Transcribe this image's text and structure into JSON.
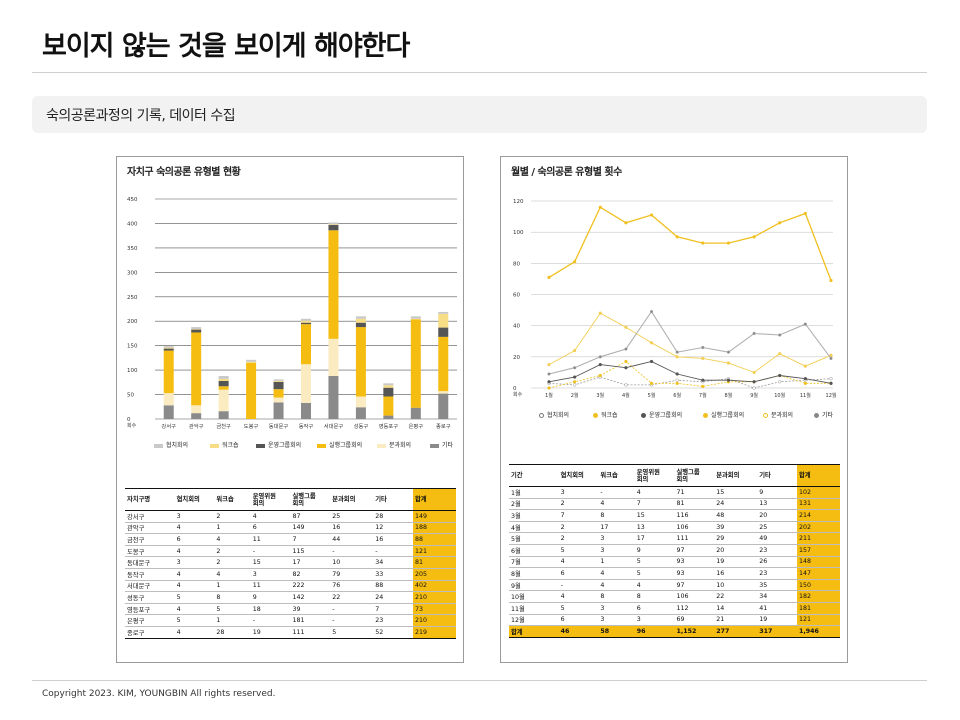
{
  "page": {
    "title": "보이지 않는 것을 보이게 해야한다",
    "section": "숙의공론과정의  기록, 데이터 수집",
    "copyright": "Copyright 2023.  KIM, YOUNGBIN All rights reserved."
  },
  "colors": {
    "accent": "#f5bd12",
    "s1": "#c9c9c9",
    "s2": "#f6dd86",
    "s3": "#555555",
    "s4": "#f5bd12",
    "s5": "#faebc0",
    "s6": "#8a8a8a",
    "l1": "#f0c020",
    "l2": "#b0b0b0",
    "l3": "#555555"
  },
  "left_panel": {
    "title": "자치구 숙의공론 유형별 현황",
    "legend": [
      "협치회의",
      "워크숍",
      "운영그룹회의",
      "실행그룹회의",
      "분과회의",
      "기타"
    ],
    "table": {
      "headers": [
        "자치구명",
        "협치회의",
        "워크숍",
        "운영위원\n회의",
        "실행그룹\n회의",
        "분과회의",
        "기타",
        "합계"
      ],
      "rows": [
        [
          "강서구",
          "3",
          "2",
          "4",
          "87",
          "25",
          "28",
          "149"
        ],
        [
          "관악구",
          "4",
          "1",
          "6",
          "149",
          "16",
          "12",
          "188"
        ],
        [
          "금천구",
          "6",
          "4",
          "11",
          "7",
          "44",
          "16",
          "88"
        ],
        [
          "도봉구",
          "4",
          "2",
          "-",
          "115",
          "-",
          "-",
          "121"
        ],
        [
          "동대문구",
          "3",
          "2",
          "15",
          "17",
          "10",
          "34",
          "81"
        ],
        [
          "동작구",
          "4",
          "4",
          "3",
          "82",
          "79",
          "33",
          "205"
        ],
        [
          "서대문구",
          "4",
          "1",
          "11",
          "222",
          "76",
          "88",
          "402"
        ],
        [
          "성동구",
          "5",
          "8",
          "9",
          "142",
          "22",
          "24",
          "210"
        ],
        [
          "영등포구",
          "4",
          "5",
          "18",
          "39",
          "-",
          "7",
          "73"
        ],
        [
          "은평구",
          "5",
          "1",
          "-",
          "181",
          "-",
          "23",
          "210"
        ],
        [
          "종로구",
          "4",
          "28",
          "19",
          "111",
          "5",
          "52",
          "219"
        ]
      ]
    }
  },
  "right_panel": {
    "title": "월별 / 숙의공론 유형별 횟수",
    "legend": [
      "협치회의",
      "워크숍",
      "운영그룹회의",
      "실행그룹회의",
      "분과회의",
      "기타"
    ],
    "table": {
      "headers": [
        "기간",
        "협치회의",
        "워크숍",
        "운영위원\n회의",
        "실행그룹\n회의",
        "분과회의",
        "기타",
        "합계"
      ],
      "rows": [
        [
          "1월",
          "3",
          "-",
          "4",
          "71",
          "15",
          "9",
          "102"
        ],
        [
          "2월",
          "2",
          "4",
          "7",
          "81",
          "24",
          "13",
          "131"
        ],
        [
          "3월",
          "7",
          "8",
          "15",
          "116",
          "48",
          "20",
          "214"
        ],
        [
          "4월",
          "2",
          "17",
          "13",
          "106",
          "39",
          "25",
          "202"
        ],
        [
          "5월",
          "2",
          "3",
          "17",
          "111",
          "29",
          "49",
          "211"
        ],
        [
          "6월",
          "5",
          "3",
          "9",
          "97",
          "20",
          "23",
          "157"
        ],
        [
          "7월",
          "4",
          "1",
          "5",
          "93",
          "19",
          "26",
          "148"
        ],
        [
          "8월",
          "6",
          "4",
          "5",
          "93",
          "16",
          "23",
          "147"
        ],
        [
          "9월",
          "-",
          "4",
          "4",
          "97",
          "10",
          "35",
          "150"
        ],
        [
          "10월",
          "4",
          "8",
          "8",
          "106",
          "22",
          "34",
          "182"
        ],
        [
          "11월",
          "5",
          "3",
          "6",
          "112",
          "14",
          "41",
          "181"
        ],
        [
          "12월",
          "6",
          "3",
          "3",
          "69",
          "21",
          "19",
          "121"
        ]
      ],
      "total": [
        "합계",
        "46",
        "58",
        "96",
        "1,152",
        "277",
        "317",
        "1,946"
      ]
    }
  },
  "chart_data": [
    {
      "type": "bar",
      "stacked": true,
      "title": "자치구 숙의공론 유형별 현황",
      "ylabel": "회수",
      "ylim": [
        0,
        450
      ],
      "yticks": [
        "0",
        "50",
        "100",
        "150",
        "200",
        "250",
        "300",
        "350",
        "400",
        "450"
      ],
      "categories": [
        "강서구",
        "관악구",
        "금천구",
        "도봉구",
        "동대문구",
        "동작구",
        "서대문구",
        "성동구",
        "영등포구",
        "은평구",
        "종로구"
      ],
      "series": [
        {
          "name": "기타",
          "values": [
            28,
            12,
            16,
            0,
            34,
            33,
            88,
            24,
            7,
            23,
            52
          ]
        },
        {
          "name": "분과회의",
          "values": [
            25,
            16,
            44,
            0,
            10,
            79,
            76,
            22,
            0,
            0,
            5
          ]
        },
        {
          "name": "실행그룹회의",
          "values": [
            87,
            149,
            7,
            115,
            17,
            82,
            222,
            142,
            39,
            181,
            111
          ]
        },
        {
          "name": "운영그룹회의",
          "values": [
            4,
            6,
            11,
            0,
            15,
            3,
            11,
            9,
            18,
            0,
            19
          ]
        },
        {
          "name": "워크숍",
          "values": [
            2,
            1,
            4,
            2,
            2,
            4,
            1,
            8,
            5,
            1,
            28
          ]
        },
        {
          "name": "협치회의",
          "values": [
            3,
            4,
            6,
            4,
            3,
            4,
            4,
            5,
            4,
            5,
            4
          ]
        }
      ]
    },
    {
      "type": "line",
      "title": "월별 / 숙의공론 유형별 횟수",
      "ylabel": "회수",
      "ylim": [
        0,
        120
      ],
      "yticks": [
        "0",
        "20",
        "40",
        "60",
        "80",
        "100",
        "120"
      ],
      "categories": [
        "1월",
        "2월",
        "3월",
        "4월",
        "5월",
        "6월",
        "7월",
        "8월",
        "9월",
        "10월",
        "11월",
        "12월"
      ],
      "series": [
        {
          "name": "협치회의",
          "values": [
            3,
            2,
            7,
            2,
            2,
            5,
            4,
            6,
            0,
            4,
            5,
            6
          ]
        },
        {
          "name": "워크숍",
          "values": [
            0,
            4,
            8,
            17,
            3,
            3,
            1,
            4,
            4,
            8,
            3,
            3
          ]
        },
        {
          "name": "운영그룹회의",
          "values": [
            4,
            7,
            15,
            13,
            17,
            9,
            5,
            5,
            4,
            8,
            6,
            3
          ]
        },
        {
          "name": "실행그룹회의",
          "values": [
            71,
            81,
            116,
            106,
            111,
            97,
            93,
            93,
            97,
            106,
            112,
            69
          ]
        },
        {
          "name": "분과회의",
          "values": [
            15,
            24,
            48,
            39,
            29,
            20,
            19,
            16,
            10,
            22,
            14,
            21
          ]
        },
        {
          "name": "기타",
          "values": [
            9,
            13,
            20,
            25,
            49,
            23,
            26,
            23,
            35,
            34,
            41,
            19
          ]
        }
      ]
    }
  ]
}
